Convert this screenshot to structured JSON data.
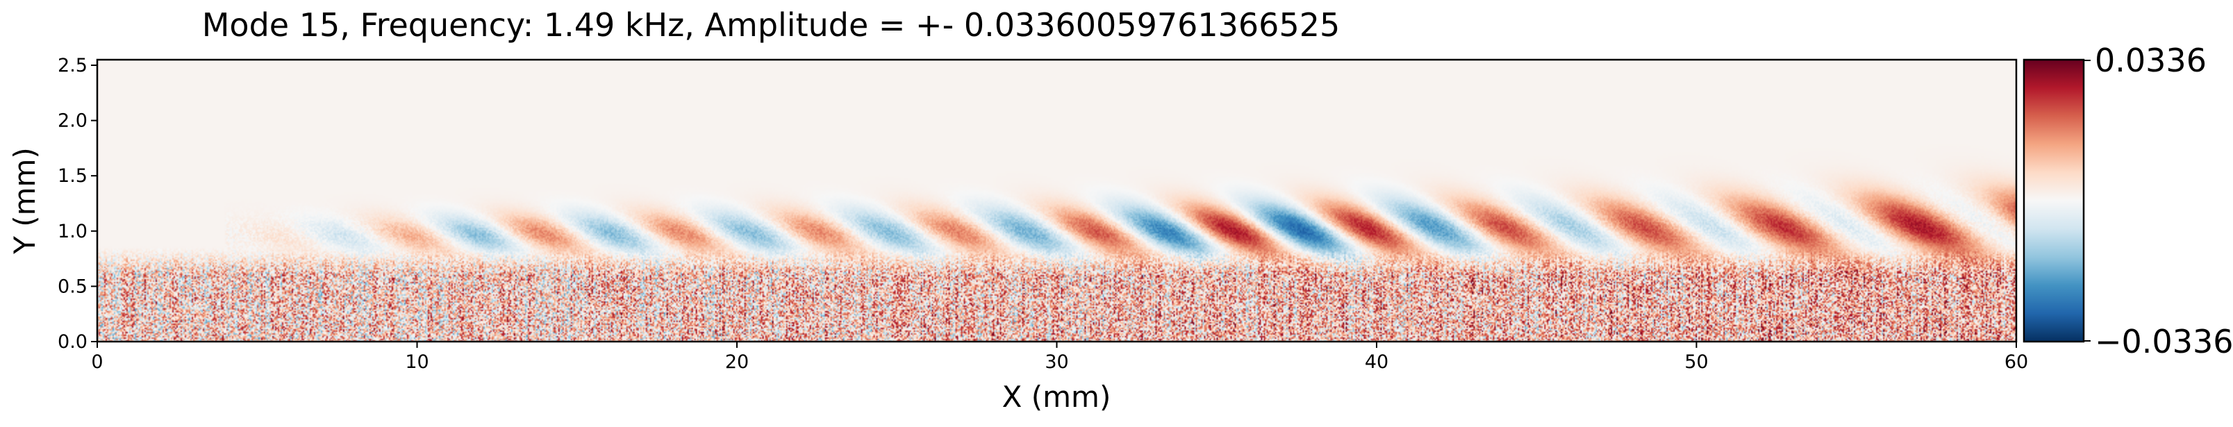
{
  "chart_data": {
    "type": "heatmap",
    "title": "Mode 15, Frequency: 1.49 kHz, Amplitude = +- 0.03360059761366525",
    "xlabel": "X (mm)",
    "ylabel": "Y (mm)",
    "xlim": [
      0,
      60
    ],
    "ylim": [
      0,
      2.55
    ],
    "x_ticks": [
      0,
      10,
      20,
      30,
      40,
      50,
      60
    ],
    "x_tick_labels": [
      "0",
      "10",
      "20",
      "30",
      "40",
      "50",
      "60"
    ],
    "y_ticks": [
      0.0,
      0.5,
      1.0,
      1.5,
      2.0,
      2.5
    ],
    "y_tick_labels": [
      "0.0",
      "0.5",
      "1.0",
      "1.5",
      "2.0",
      "2.5"
    ],
    "colormap": "RdBu_r",
    "colors": {
      "low": "#053061",
      "mid": "#f7f7f7",
      "high": "#67001f"
    },
    "colorbar": {
      "min": -0.0336,
      "max": 0.0336,
      "min_label": "−0.0336",
      "max_label": "0.0336"
    },
    "grid": false,
    "field_description": {
      "noise_band_top_y": 0.6,
      "wave_band_center_y": 0.95,
      "wave_band_halfwidth_y_start": 0.15,
      "wave_band_halfwidth_y_end": 0.3,
      "wave_onset_x": 4,
      "wavelength_x": 4.3,
      "peak_amplitude_x": 37,
      "red_bias_increase_x": [
        40,
        60
      ],
      "upper_region_value": 0.001
    }
  }
}
